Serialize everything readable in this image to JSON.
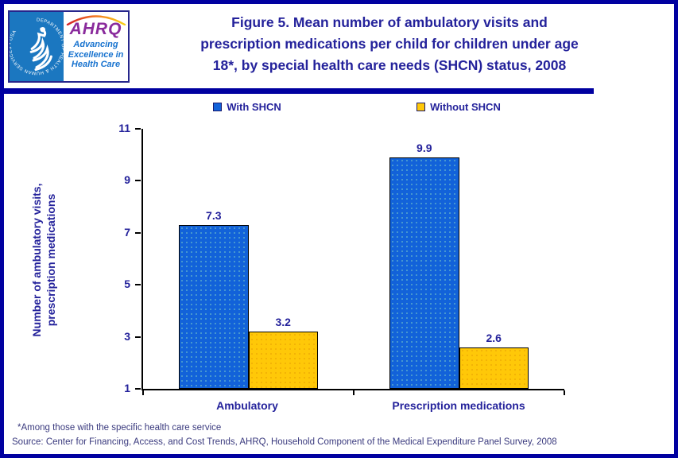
{
  "header": {
    "logo": {
      "hhs_circular_text": "DEPARTMENT OF HEALTH & HUMAN SERVICES • USA",
      "ahrq_acronym": "AHRQ",
      "ahrq_tagline_lines": [
        "Advancing",
        "Excellence in",
        "Health Care"
      ]
    },
    "title_lines": [
      "Figure 5. Mean number of ambulatory visits and",
      "prescription medications per child for children under age",
      "18*, by special health care needs (SHCN) status, 2008"
    ]
  },
  "chart_data": {
    "type": "bar",
    "title": "Figure 5. Mean number of ambulatory visits and prescription medications per child for children under age 18*, by special health care needs (SHCN) status, 2008",
    "categories": [
      "Ambulatory",
      "Prescription medications"
    ],
    "series": [
      {
        "name": "With SHCN",
        "values": [
          7.3,
          9.9
        ],
        "color": "#1262D9"
      },
      {
        "name": "Without SHCN",
        "values": [
          3.2,
          2.6
        ],
        "color": "#FFC808"
      }
    ],
    "ylabel_lines": [
      "Number of ambulatory visits,",
      "prescription medications"
    ],
    "ylabel": "Number of ambulatory visits, prescription medications",
    "xlabel": "",
    "ylim": [
      1,
      11
    ],
    "yticks": [
      11,
      9,
      7,
      5,
      3,
      1
    ],
    "grid": false,
    "legend_position": "top",
    "bar_labels": true
  },
  "footnotes": {
    "note": "*Among those with the specific health care service",
    "source": "Source: Center for Financing, Access, and Cost Trends, AHRQ, Household Component of the Medical Expenditure Panel Survey, 2008"
  },
  "colors": {
    "frame": "#0000A0",
    "text": "#24229B",
    "footnote": "#3A3A7E",
    "hhs-blue": "#1B77C0",
    "ahrq-purple": "#8A2B9C",
    "tagline-blue": "#1873CF"
  }
}
